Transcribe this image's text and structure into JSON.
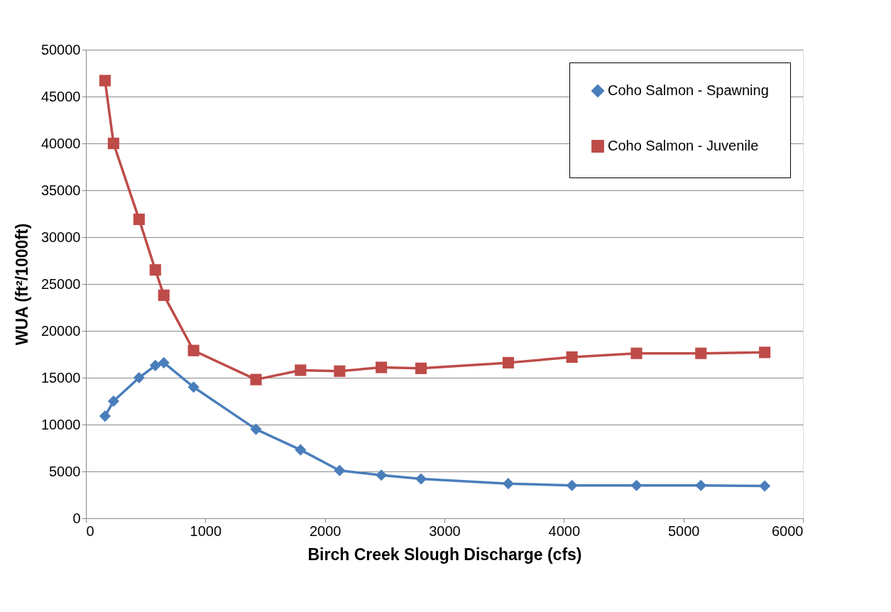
{
  "chart_data": {
    "type": "line",
    "xlabel": "Birch Creek Slough Discharge (cfs)",
    "ylabel": "WUA (ft²/1000ft)",
    "x": [
      160,
      231,
      445,
      581,
      652,
      901,
      1423,
      1796,
      2123,
      2472,
      2804,
      3534,
      4067,
      4607,
      5146,
      5680
    ],
    "series": [
      {
        "name": "Coho Salmon - Spawning",
        "color": "#4a7ebb",
        "marker": "diamond",
        "values": [
          10900,
          12500,
          15000,
          16300,
          16600,
          14000,
          9500,
          7300,
          5100,
          4600,
          4200,
          3700,
          3500,
          3500,
          3500,
          3450
        ]
      },
      {
        "name": "Coho Salmon - Juvenile",
        "color": "#be4b48",
        "marker": "square",
        "values": [
          46700,
          40000,
          31900,
          26500,
          23800,
          17900,
          14800,
          15800,
          15700,
          16100,
          16000,
          16600,
          17200,
          17600,
          17600,
          17700
        ]
      }
    ],
    "xlim": [
      0,
      6000
    ],
    "xticks": [
      0,
      1000,
      2000,
      3000,
      4000,
      5000,
      6000
    ],
    "ylim": [
      0,
      50000
    ],
    "yticks": [
      0,
      5000,
      10000,
      15000,
      20000,
      25000,
      30000,
      35000,
      40000,
      45000,
      50000
    ],
    "grid": "y",
    "legend": "top right",
    "line_style": "solid"
  }
}
